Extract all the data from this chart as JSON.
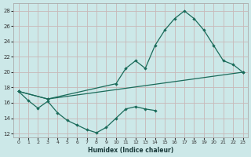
{
  "xlabel": "Humidex (Indice chaleur)",
  "bg_color": "#cce8e8",
  "line_color": "#1a6b5a",
  "grid_color": "#c8b8b8",
  "xlim": [
    -0.5,
    23.5
  ],
  "ylim": [
    11.5,
    29
  ],
  "xticks": [
    0,
    1,
    2,
    3,
    4,
    5,
    6,
    7,
    8,
    9,
    10,
    11,
    12,
    13,
    14,
    15,
    16,
    17,
    18,
    19,
    20,
    21,
    22,
    23
  ],
  "yticks": [
    12,
    14,
    16,
    18,
    20,
    22,
    24,
    26,
    28
  ],
  "curve1_x": [
    0,
    1,
    2,
    3,
    4,
    5,
    6,
    7,
    8,
    9,
    10,
    11,
    12,
    13,
    14
  ],
  "curve1_y": [
    17.5,
    16.3,
    15.3,
    16.2,
    14.7,
    13.7,
    13.1,
    12.5,
    12.1,
    12.8,
    14.0,
    15.2,
    15.5,
    15.2,
    15.0
  ],
  "curve2_x": [
    0,
    3,
    23
  ],
  "curve2_y": [
    17.5,
    16.5,
    20.0
  ],
  "curve3_x": [
    0,
    3,
    10,
    11,
    12,
    13,
    14,
    15,
    16,
    17,
    18,
    19,
    20,
    21,
    22,
    23
  ],
  "curve3_y": [
    17.5,
    16.5,
    18.5,
    20.5,
    21.5,
    20.5,
    23.5,
    25.5,
    27.0,
    28.0,
    27.0,
    25.5,
    23.5,
    21.5,
    21.0,
    20.0
  ]
}
